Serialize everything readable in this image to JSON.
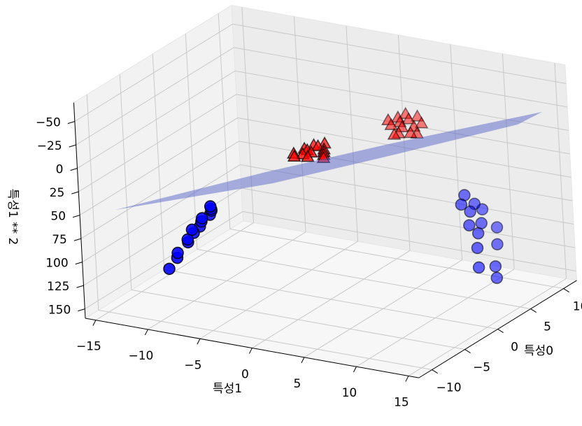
{
  "chart_data": {
    "type": "scatter3d",
    "xlabel": "특성0",
    "ylabel": "특성1",
    "zlabel": "특성1 ** 2",
    "xlim": [
      -12,
      12
    ],
    "ylim": [
      -16,
      16
    ],
    "zlim": [
      160,
      -70
    ],
    "xticks": [
      {
        "value": -10,
        "label": "−10"
      },
      {
        "value": -5,
        "label": "−5"
      },
      0,
      5,
      10
    ],
    "yticks": [
      {
        "value": -15,
        "label": "−15"
      },
      {
        "value": -10,
        "label": "−10"
      },
      {
        "value": -5,
        "label": "−5"
      },
      0,
      5,
      10,
      15
    ],
    "zticks": [
      {
        "value": -50,
        "label": "−50"
      },
      {
        "value": -25,
        "label": "−25"
      },
      0,
      25,
      50,
      75,
      100,
      125,
      150
    ],
    "grid": true,
    "series": [
      {
        "marker": "circle",
        "color": "#0000ff",
        "x": [
          -7,
          -6,
          -5.5,
          -6.5,
          -5,
          -6,
          -7,
          -5.5,
          -6,
          -6.5,
          -6,
          -7,
          -6.5,
          -7,
          8,
          7,
          8.5,
          7.5,
          9,
          6.5,
          8,
          7,
          9.5,
          6,
          8.5,
          5,
          7,
          6.5
        ],
        "y": [
          -6.6,
          -7.2,
          -7.5,
          -7.8,
          -8.0,
          -8.2,
          -8.5,
          -8.7,
          -9.0,
          -9.3,
          -9.6,
          -10.0,
          -10.4,
          -10.9,
          8.2,
          8.5,
          8.8,
          9.0,
          9.2,
          9.5,
          9.7,
          10.0,
          10.2,
          10.5,
          10.8,
          11.2,
          11.5,
          11.9
        ],
        "z": [
          43.6,
          51.8,
          56.3,
          60.8,
          64,
          67.2,
          72.3,
          75.7,
          81,
          86.5,
          92.2,
          100,
          108.2,
          118.8,
          67.2,
          72.3,
          77.4,
          81,
          84.6,
          90.3,
          94.1,
          100,
          104,
          110.3,
          116.6,
          125.4,
          132.3,
          141.6
        ]
      },
      {
        "marker": "triangle",
        "color": "#ff0000",
        "x": [
          -1,
          0,
          -2,
          -0.5,
          -1.5,
          0.5,
          -1,
          -2,
          0,
          -0.5,
          -1,
          -1.5,
          0.8,
          1.2,
          8,
          9,
          7.5,
          8.5,
          9.5,
          8,
          7,
          9,
          8,
          8.5,
          10,
          10.5,
          10,
          6.5
        ],
        "y": [
          -2.2,
          -1.8,
          -1.5,
          -1.2,
          -1.0,
          -0.8,
          -0.5,
          -0.2,
          0.1,
          0.4,
          0.7,
          1.0,
          -1.4,
          -0.6,
          1.2,
          1.5,
          1.8,
          2.0,
          2.2,
          2.5,
          2.8,
          3.0,
          3.3,
          3.6,
          1.6,
          2.4,
          3.1,
          2.7
        ],
        "z": [
          4.8,
          3.2,
          2.3,
          1.4,
          1.0,
          0.6,
          0.3,
          0.0,
          0.0,
          0.2,
          0.5,
          1.0,
          2.0,
          0.4,
          1.4,
          2.3,
          3.2,
          4,
          4.8,
          6.3,
          7.8,
          9,
          10.9,
          13,
          2.6,
          5.8,
          9.6,
          7.3
        ]
      }
    ]
  }
}
